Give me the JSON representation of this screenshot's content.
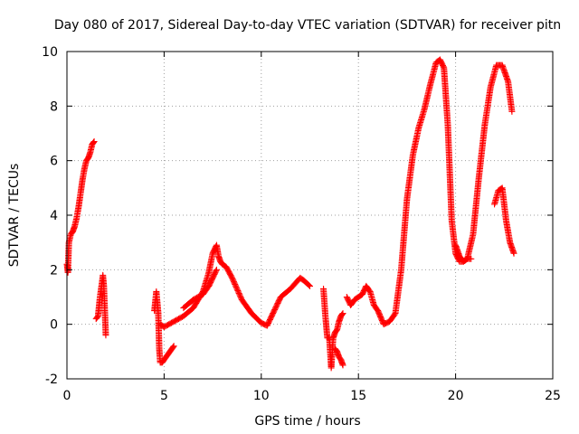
{
  "chart_data": {
    "type": "scatter",
    "title": "Day 080 of 2017, Sidereal Day-to-day VTEC variation (SDTVAR) for receiver pitn",
    "xlabel": "GPS time / hours",
    "ylabel": "SDTVAR / TECUs",
    "xlim": [
      0,
      25
    ],
    "ylim": [
      -2,
      10
    ],
    "xticks": [
      "0",
      "5",
      "10",
      "15",
      "20",
      "25"
    ],
    "yticks": [
      "-2",
      "0",
      "2",
      "4",
      "6",
      "8",
      "10"
    ],
    "grid": true,
    "marker": "+",
    "color": "#ff0000",
    "segments": [
      {
        "x": [
          0.0,
          0.05,
          0.1,
          0.2,
          0.3,
          0.4,
          0.5,
          0.6,
          0.7,
          0.8,
          0.9,
          1.0,
          1.1,
          1.2,
          1.3,
          1.4
        ],
        "y": [
          2.2,
          1.9,
          3.0,
          3.3,
          3.4,
          3.6,
          3.9,
          4.3,
          4.8,
          5.3,
          5.7,
          6.0,
          6.1,
          6.3,
          6.6,
          6.7
        ]
      },
      {
        "x": [
          1.5,
          1.6,
          1.7,
          1.8,
          1.85,
          1.9,
          1.95,
          2.0
        ],
        "y": [
          0.2,
          0.3,
          1.0,
          1.5,
          1.8,
          1.4,
          0.5,
          -0.4
        ]
      },
      {
        "x": [
          4.5,
          4.6,
          4.7,
          4.75,
          4.8,
          4.9,
          5.0,
          5.1,
          5.2,
          5.3,
          5.4,
          5.5
        ],
        "y": [
          0.5,
          1.2,
          0.4,
          -0.9,
          -1.4,
          -1.4,
          -1.3,
          -1.2,
          -1.1,
          -1.0,
          -0.9,
          -0.8
        ]
      },
      {
        "x": [
          4.8,
          5.0,
          5.5,
          6.0,
          6.5,
          7.0,
          7.3,
          7.5,
          7.7,
          7.8,
          7.9,
          8.0,
          8.2,
          8.5,
          9.0,
          9.5,
          10.0,
          10.3,
          10.6,
          11.0,
          11.5,
          12.0,
          12.2,
          12.5
        ],
        "y": [
          0.0,
          -0.1,
          0.1,
          0.3,
          0.6,
          1.2,
          1.9,
          2.6,
          2.9,
          2.5,
          2.3,
          2.2,
          2.1,
          1.7,
          0.9,
          0.4,
          0.05,
          -0.05,
          0.4,
          1.0,
          1.3,
          1.7,
          1.6,
          1.4
        ]
      },
      {
        "x": [
          6.0,
          6.5,
          7.0,
          7.3,
          7.5,
          7.7
        ],
        "y": [
          0.6,
          0.9,
          1.1,
          1.4,
          1.7,
          2.0
        ]
      },
      {
        "x": [
          13.2,
          13.3,
          13.4,
          13.5,
          13.6,
          13.7,
          13.8,
          13.9,
          14.0,
          14.1,
          14.2
        ],
        "y": [
          1.3,
          0.3,
          -0.5,
          -0.5,
          -1.6,
          -0.5,
          -0.3,
          -0.2,
          0.1,
          0.3,
          0.4
        ]
      },
      {
        "x": [
          13.8,
          13.9,
          14.0,
          14.1,
          14.2
        ],
        "y": [
          -0.9,
          -1.0,
          -1.2,
          -1.3,
          -1.5
        ]
      },
      {
        "x": [
          14.4,
          14.6,
          14.8,
          15.0,
          15.2,
          15.4,
          15.6,
          15.8,
          16.0,
          16.3,
          16.6,
          16.9,
          17.2,
          17.5,
          17.8,
          18.1,
          18.4,
          18.7,
          19.0,
          19.2,
          19.4,
          19.6,
          19.8,
          20.0,
          20.2,
          20.4,
          20.6,
          20.9,
          21.2,
          21.5,
          21.8,
          22.1,
          22.4,
          22.7,
          22.9
        ],
        "y": [
          1.0,
          0.7,
          0.9,
          1.0,
          1.1,
          1.4,
          1.2,
          0.7,
          0.5,
          0.0,
          0.1,
          0.4,
          2.0,
          4.6,
          6.2,
          7.2,
          7.9,
          8.8,
          9.6,
          9.7,
          9.4,
          7.3,
          3.8,
          2.6,
          2.3,
          2.3,
          2.4,
          3.3,
          5.4,
          7.3,
          8.7,
          9.5,
          9.5,
          8.9,
          7.8
        ]
      },
      {
        "x": [
          20.0,
          20.2,
          20.4,
          20.6,
          20.8
        ],
        "y": [
          2.9,
          2.5,
          2.3,
          2.4,
          2.4
        ]
      },
      {
        "x": [
          22.0,
          22.2,
          22.4,
          22.6,
          22.8,
          23.0
        ],
        "y": [
          4.4,
          4.9,
          5.0,
          3.8,
          3.0,
          2.6
        ]
      }
    ]
  }
}
